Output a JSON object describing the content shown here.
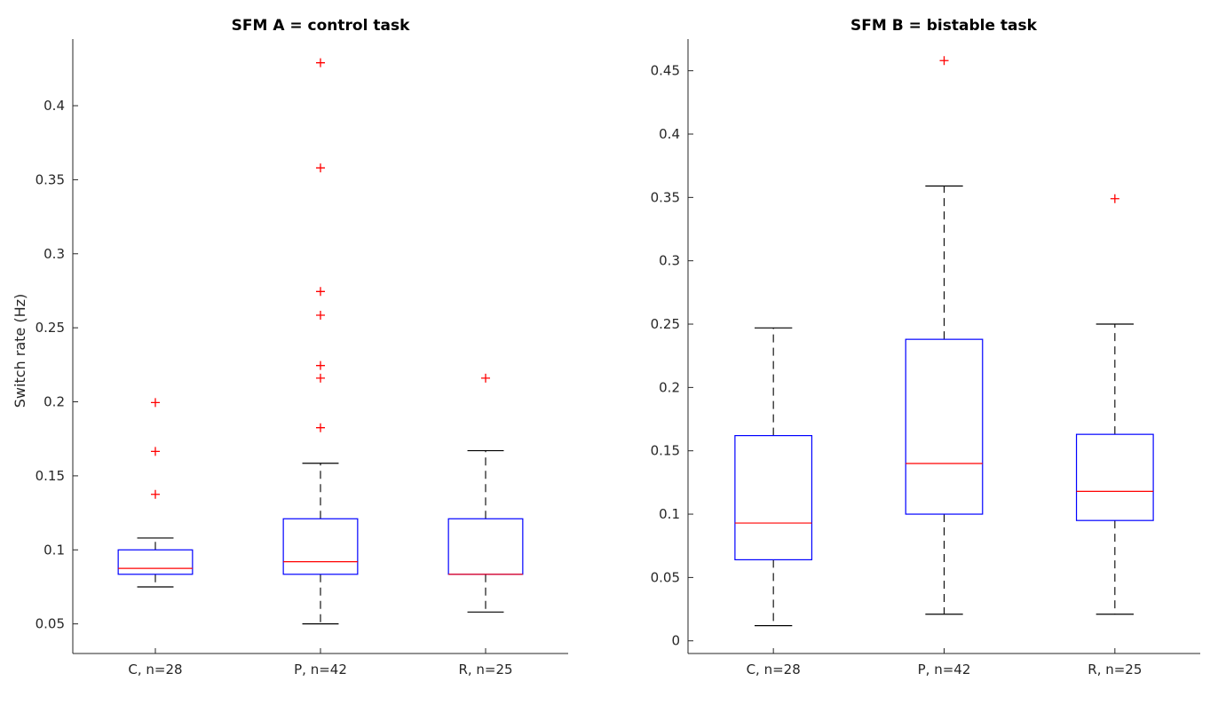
{
  "chart_data": [
    {
      "type": "box",
      "title": "SFM A = control task",
      "xlabel": "",
      "ylabel": "Switch rate (Hz)",
      "categories": [
        "C, n=28",
        "P, n=42",
        "R, n=25"
      ],
      "ylim": [
        0.03,
        0.445
      ],
      "yticks": [
        0.05,
        0.1,
        0.15,
        0.2,
        0.25,
        0.3,
        0.35,
        0.4
      ],
      "ytick_labels": [
        "0.05",
        "0.1",
        "0.15",
        "0.2",
        "0.25",
        "0.3",
        "0.35",
        "0.4"
      ],
      "boxes": [
        {
          "whisker_low": 0.075,
          "q1": 0.0835,
          "median": 0.0875,
          "q3": 0.1,
          "whisker_high": 0.108,
          "outliers": [
            0.1375,
            0.1665,
            0.1995
          ]
        },
        {
          "whisker_low": 0.05,
          "q1": 0.0835,
          "median": 0.092,
          "q3": 0.121,
          "whisker_high": 0.1585,
          "outliers": [
            0.1825,
            0.216,
            0.2245,
            0.2585,
            0.2745,
            0.358,
            0.429
          ]
        },
        {
          "whisker_low": 0.058,
          "q1": 0.0835,
          "median": 0.0835,
          "q3": 0.121,
          "whisker_high": 0.167,
          "outliers": [
            0.216
          ]
        }
      ],
      "colors": {
        "box": "#0000ff",
        "median": "#ff0000",
        "whisker": "#000000",
        "outlier": "#ff0000"
      },
      "grid": false
    },
    {
      "type": "box",
      "title": "SFM B = bistable task",
      "xlabel": "",
      "ylabel": "",
      "categories": [
        "C, n=28",
        "P, n=42",
        "R, n=25"
      ],
      "ylim": [
        -0.01,
        0.475
      ],
      "yticks": [
        0,
        0.05,
        0.1,
        0.15,
        0.2,
        0.25,
        0.3,
        0.35,
        0.4,
        0.45
      ],
      "ytick_labels": [
        "0",
        "0.05",
        "0.1",
        "0.15",
        "0.2",
        "0.25",
        "0.3",
        "0.35",
        "0.4",
        "0.45"
      ],
      "boxes": [
        {
          "whisker_low": 0.012,
          "q1": 0.064,
          "median": 0.093,
          "q3": 0.162,
          "whisker_high": 0.247,
          "outliers": []
        },
        {
          "whisker_low": 0.021,
          "q1": 0.1,
          "median": 0.14,
          "q3": 0.238,
          "whisker_high": 0.359,
          "outliers": [
            0.458
          ]
        },
        {
          "whisker_low": 0.021,
          "q1": 0.095,
          "median": 0.118,
          "q3": 0.163,
          "whisker_high": 0.25,
          "outliers": [
            0.349
          ]
        }
      ],
      "colors": {
        "box": "#0000ff",
        "median": "#ff0000",
        "whisker": "#000000",
        "outlier": "#ff0000"
      },
      "grid": false
    }
  ]
}
